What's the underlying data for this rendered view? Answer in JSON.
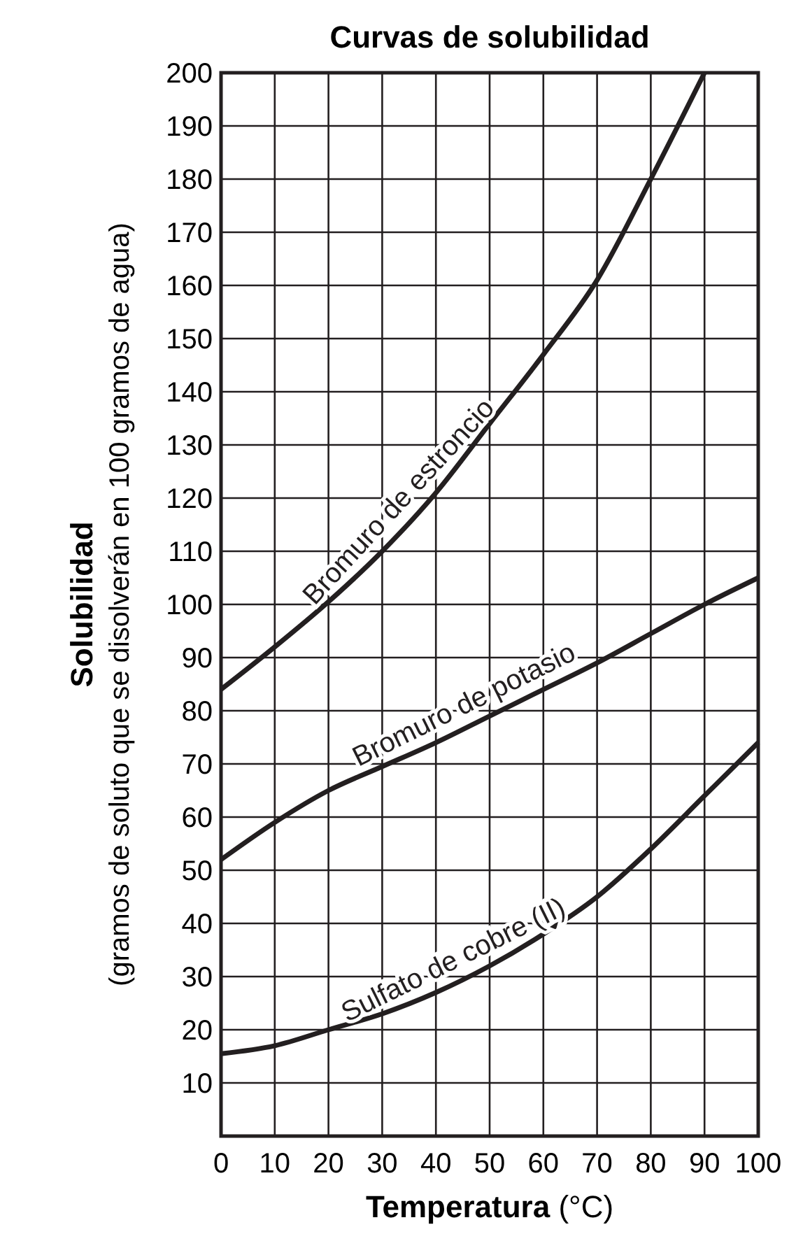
{
  "chart_data": {
    "type": "line",
    "title": "Curvas de solubilidad",
    "xlabel": "Temperatura (°C)",
    "ylabel": "Solubilidad\n(gramos de soluto que se disolverán en 100 gramos de agua)",
    "x": [
      0,
      10,
      20,
      30,
      40,
      50,
      60,
      70,
      80,
      90,
      100
    ],
    "series": [
      {
        "name": "Bromuro de estroncio",
        "color": "#231f20",
        "x": [
          0,
          10,
          20,
          30,
          40,
          50,
          60,
          70,
          80,
          90
        ],
        "values": [
          84,
          92,
          100.5,
          110,
          121,
          134,
          147,
          161,
          180,
          200
        ]
      },
      {
        "name": "Bromuro de potasio",
        "color": "#231f20",
        "values": [
          52,
          59,
          65,
          69.5,
          74,
          79,
          84,
          89,
          94.5,
          100,
          105
        ]
      },
      {
        "name": "Sulfato de cobre (II)",
        "color": "#231f20",
        "values": [
          15.5,
          17,
          20,
          23,
          27,
          32,
          38,
          45,
          54,
          64,
          74
        ]
      }
    ],
    "xlim": [
      0,
      100
    ],
    "xticks": [
      0,
      10,
      20,
      30,
      40,
      50,
      60,
      70,
      80,
      90,
      100
    ],
    "ylim": [
      0,
      200
    ],
    "yticks": [
      10,
      20,
      30,
      40,
      50,
      60,
      70,
      80,
      90,
      100,
      110,
      120,
      130,
      140,
      150,
      160,
      170,
      180,
      190,
      200
    ],
    "grid": true,
    "marker": "none",
    "line_style": "solid"
  }
}
